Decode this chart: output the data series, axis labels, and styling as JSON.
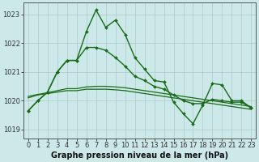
{
  "title": "Graphe pression niveau de la mer (hPa)",
  "background_color": "#cce8e8",
  "grid_color": "#aacccc",
  "line_color": "#1a6b1a",
  "xlim": [
    -0.5,
    23.5
  ],
  "ylim": [
    1018.7,
    1023.4
  ],
  "yticks": [
    1019,
    1020,
    1021,
    1022,
    1023
  ],
  "xticks": [
    0,
    1,
    2,
    3,
    4,
    5,
    6,
    7,
    8,
    9,
    10,
    11,
    12,
    13,
    14,
    15,
    16,
    17,
    18,
    19,
    20,
    21,
    22,
    23
  ],
  "series": [
    {
      "x": [
        0,
        1,
        2,
        3,
        4,
        5,
        6,
        7,
        8,
        9,
        10,
        11,
        12,
        13,
        14,
        15,
        16,
        17,
        18,
        19,
        20,
        21,
        22,
        23
      ],
      "y": [
        1019.65,
        1020.0,
        1020.3,
        1021.0,
        1021.4,
        1021.4,
        1022.4,
        1023.15,
        1022.55,
        1022.8,
        1022.3,
        1021.5,
        1021.1,
        1020.7,
        1020.65,
        1019.95,
        1019.55,
        1019.2,
        1019.85,
        1020.6,
        1020.55,
        1020.0,
        1020.0,
        1019.75
      ],
      "marker": true,
      "linewidth": 1.0
    },
    {
      "x": [
        0,
        1,
        2,
        3,
        4,
        5,
        6,
        7,
        8,
        9,
        10,
        11,
        12,
        13,
        14,
        15,
        16,
        17,
        18,
        19,
        20,
        21,
        22,
        23
      ],
      "y": [
        1020.1,
        1020.2,
        1020.25,
        1020.3,
        1020.35,
        1020.35,
        1020.4,
        1020.4,
        1020.4,
        1020.38,
        1020.35,
        1020.3,
        1020.25,
        1020.2,
        1020.15,
        1020.1,
        1020.05,
        1020.0,
        1019.95,
        1019.9,
        1019.85,
        1019.8,
        1019.75,
        1019.7
      ],
      "marker": false,
      "linewidth": 0.9
    },
    {
      "x": [
        0,
        1,
        2,
        3,
        4,
        5,
        6,
        7,
        8,
        9,
        10,
        11,
        12,
        13,
        14,
        15,
        16,
        17,
        18,
        19,
        20,
        21,
        22,
        23
      ],
      "y": [
        1020.15,
        1020.22,
        1020.28,
        1020.35,
        1020.42,
        1020.42,
        1020.48,
        1020.5,
        1020.5,
        1020.48,
        1020.45,
        1020.4,
        1020.35,
        1020.3,
        1020.25,
        1020.2,
        1020.15,
        1020.1,
        1020.05,
        1020.0,
        1019.95,
        1019.9,
        1019.85,
        1019.8
      ],
      "marker": false,
      "linewidth": 0.9
    },
    {
      "x": [
        0,
        1,
        2,
        3,
        4,
        5,
        6,
        7,
        8,
        9,
        10,
        11,
        12,
        13,
        14,
        15,
        16,
        17,
        18,
        19,
        20,
        21,
        22,
        23
      ],
      "y": [
        1019.65,
        1020.0,
        1020.3,
        1021.0,
        1021.4,
        1021.4,
        1021.85,
        1021.85,
        1021.75,
        1021.5,
        1021.2,
        1020.85,
        1020.7,
        1020.5,
        1020.4,
        1020.2,
        1020.0,
        1019.9,
        1019.9,
        1020.05,
        1020.0,
        1019.95,
        1019.95,
        1019.75
      ],
      "marker": true,
      "linewidth": 1.0
    }
  ],
  "label_fontsize": 6,
  "xlabel_fontsize": 7,
  "tick_fontsize": 6
}
